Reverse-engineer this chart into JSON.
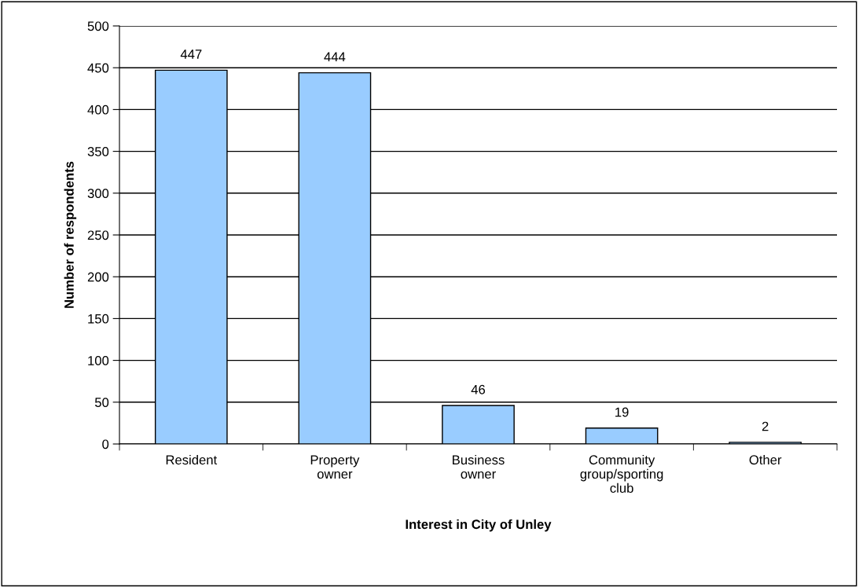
{
  "chart_data": {
    "type": "bar",
    "xlabel": "Interest in City of Unley",
    "ylabel": "Number of respondents",
    "categories": [
      "Resident",
      "Property\nowner",
      "Business\nowner",
      "Community\ngroup/sporting\nclub",
      "Other"
    ],
    "values": [
      447,
      444,
      46,
      19,
      2
    ],
    "color": "#99ccff",
    "ylim": [
      0,
      500
    ],
    "yticks": [
      0,
      50,
      100,
      150,
      200,
      250,
      300,
      350,
      400,
      450,
      500
    ],
    "grid": "y",
    "data_labels": true,
    "legend": false
  }
}
